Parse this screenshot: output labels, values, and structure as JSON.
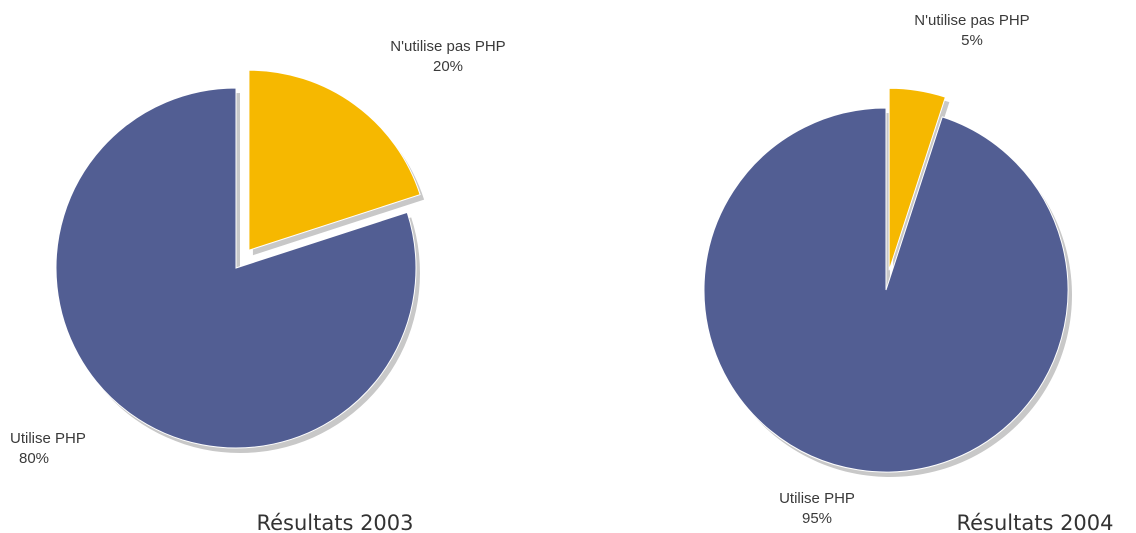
{
  "chart_data": [
    {
      "type": "pie",
      "title": "Résultats 2003",
      "slices": [
        {
          "label": "N'utilise pas PHP",
          "value": 20,
          "value_label": "20%",
          "exploded": true,
          "color": "#f6b800"
        },
        {
          "label": "Utilise PHP",
          "value": 80,
          "value_label": "80%",
          "exploded": false,
          "color": "#525e93"
        }
      ]
    },
    {
      "type": "pie",
      "title": "Résultats 2004",
      "slices": [
        {
          "label": "N'utilise pas PHP",
          "value": 5,
          "value_label": "5%",
          "exploded": true,
          "color": "#f6b800"
        },
        {
          "label": "Utilise PHP",
          "value": 95,
          "value_label": "95%",
          "exploded": false,
          "color": "#525e93"
        }
      ]
    }
  ],
  "colors": {
    "shadow": "#c8c8c8",
    "edge": "#ffffff"
  }
}
